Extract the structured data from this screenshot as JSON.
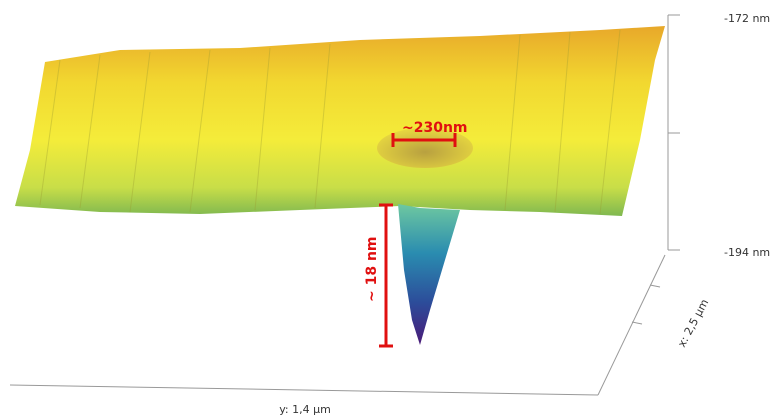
{
  "z_axis": {
    "ticks": [
      "-172 nm",
      "-194 nm"
    ]
  },
  "x_axis": {
    "label": "x: 2,5 µm"
  },
  "y_axis": {
    "label": "y: 1,4 µm"
  },
  "annotations": {
    "width": "~230nm",
    "depth": "~ 18 nm"
  }
}
